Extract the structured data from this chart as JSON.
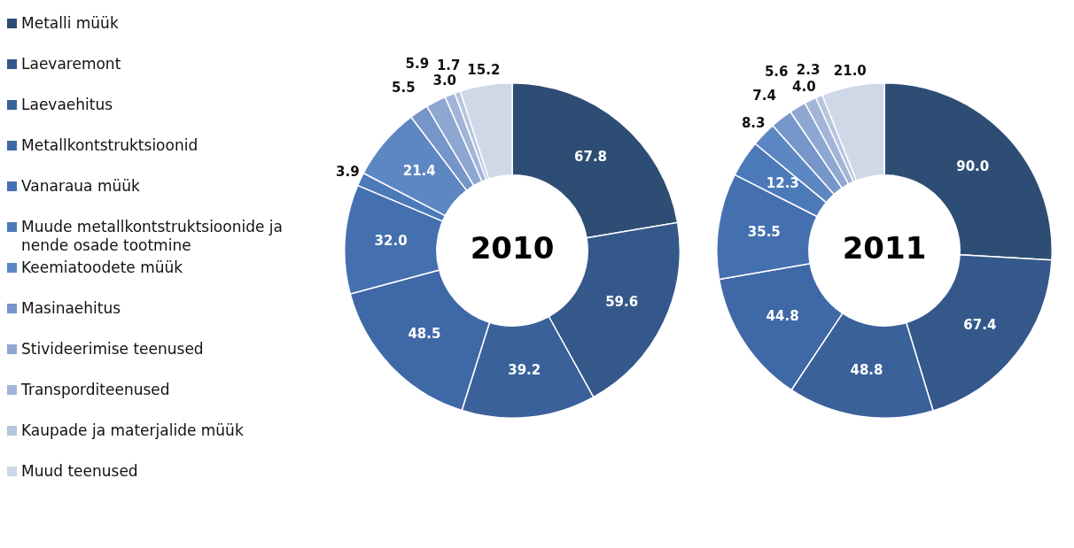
{
  "chart_data": [
    {
      "type": "donut",
      "title": "2010",
      "categories": [
        "Metalli müük",
        "Laevaremont",
        "Laevaehitus",
        "Metallkontstruktsioonid",
        "Vanaraua müük",
        "Muude metallkontstruktsioonide ja nende osade tootmine",
        "Keemiatoodete müük",
        "Masinaehitus",
        "Stivideerimise teenused",
        "Transporditeenused",
        "Kaupade ja materjalide müük",
        "Muud teenused"
      ],
      "values": [
        67.8,
        59.6,
        39.2,
        48.5,
        32.0,
        3.9,
        21.4,
        5.5,
        5.9,
        3.0,
        1.7,
        15.2
      ],
      "value_labels": [
        "67.8",
        "59.6",
        "39.2",
        "48.5",
        "32.0",
        "3.9",
        "21.4",
        "5.5",
        "5.9",
        "3.0",
        "1.7",
        "15.2"
      ],
      "colors": [
        "#2e4d74",
        "#34588a",
        "#3a619a",
        "#3f68a6",
        "#4570b0",
        "#4c7ab9",
        "#5d87c2",
        "#7695c8",
        "#8ea7d0",
        "#a3b5d7",
        "#b7c5de",
        "#cfd8e7"
      ],
      "legend": "left"
    },
    {
      "type": "donut",
      "title": "2011",
      "categories": [
        null,
        null,
        null,
        null,
        null,
        null,
        null,
        null,
        null,
        null,
        null,
        null
      ],
      "values": [
        90.0,
        67.4,
        48.8,
        44.8,
        35.5,
        12.3,
        8.3,
        7.4,
        5.6,
        4.0,
        2.3,
        21.0
      ],
      "value_labels": [
        "90.0",
        "67.4",
        "48.8",
        "44.8",
        "35.5",
        "12.3",
        "8.3",
        "7.4",
        "5.6",
        "4.0",
        "2.3",
        "21.0"
      ],
      "colors": [
        "#2e4d74",
        "#34588a",
        "#3a619a",
        "#3f68a6",
        "#4570b0",
        "#4c7ab9",
        "#5d87c2",
        "#7695c8",
        "#8ea7d0",
        "#a3b5d7",
        "#b7c5de",
        "#cfd8e7"
      ]
    }
  ]
}
